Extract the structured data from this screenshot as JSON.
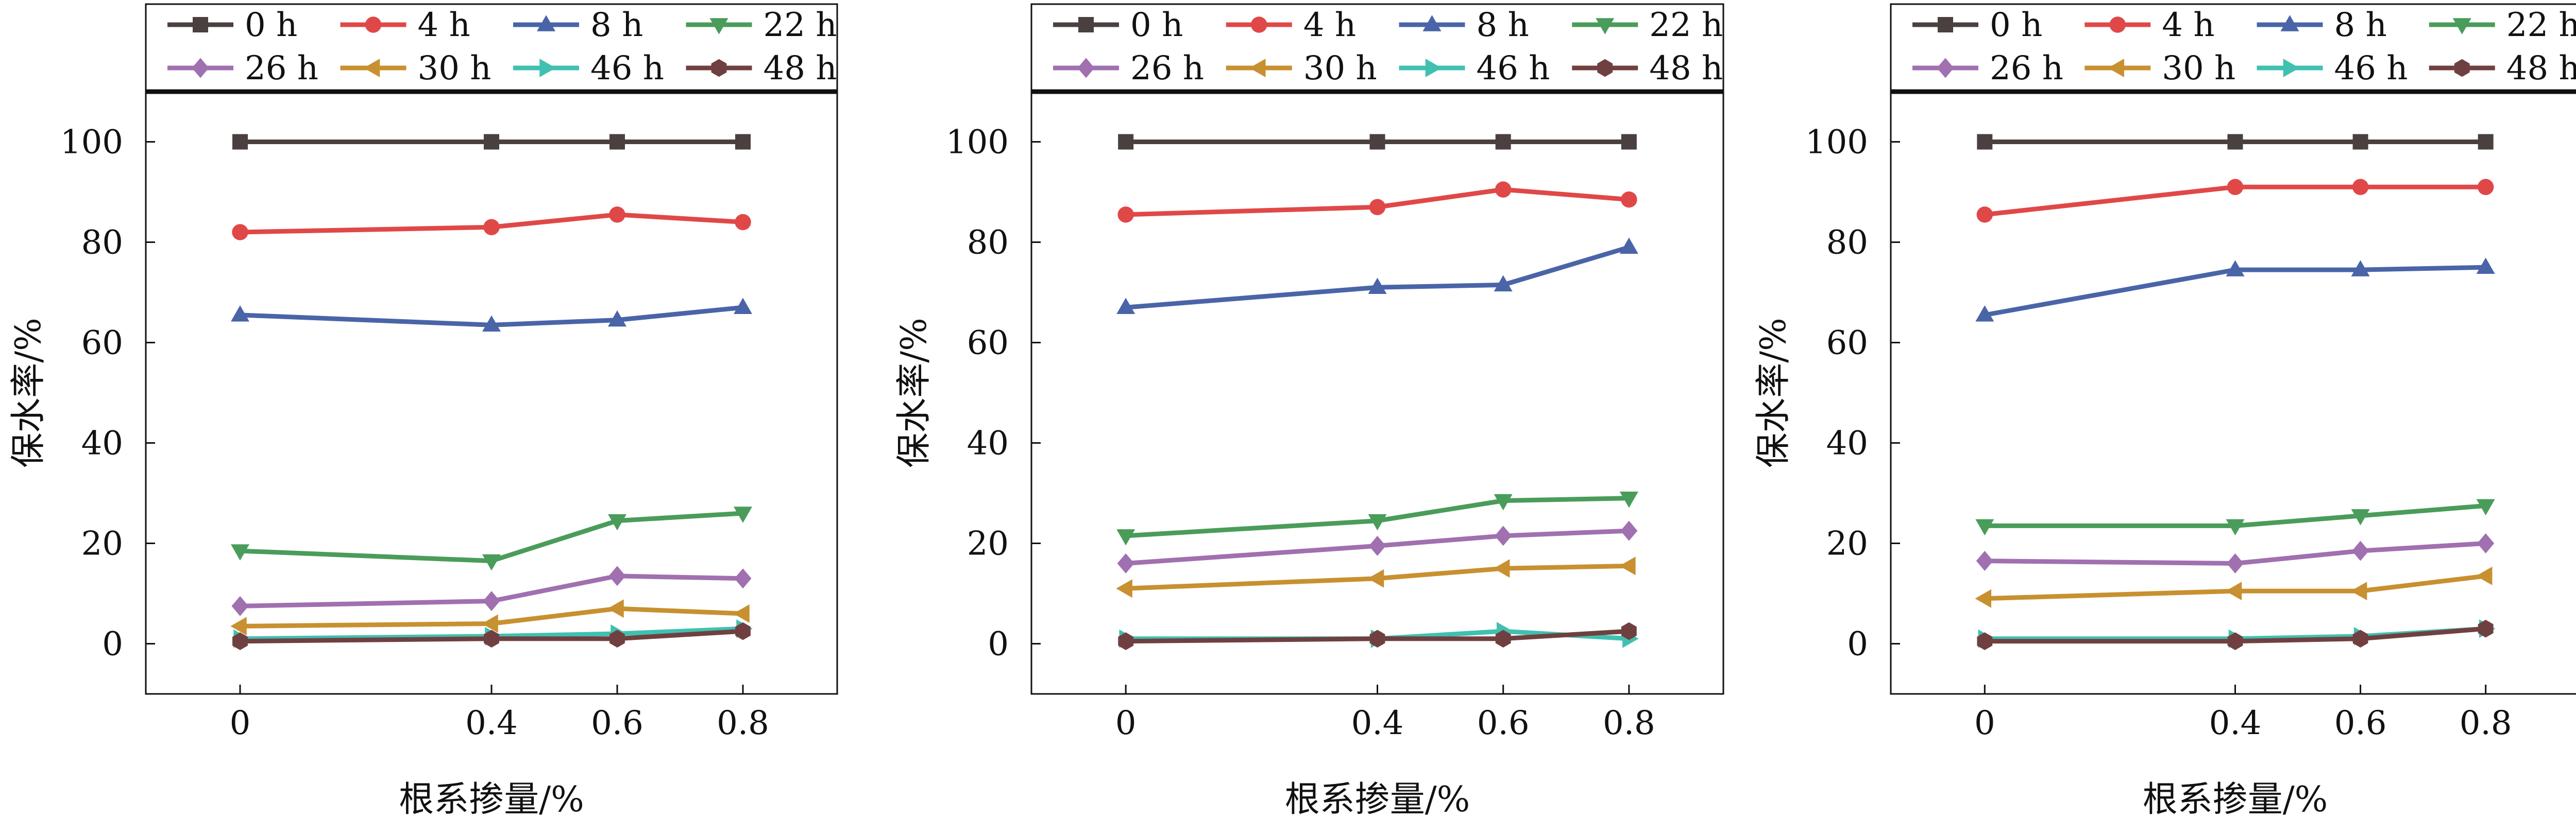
{
  "figure": {
    "panel_count": 3
  },
  "legend_series_order": [
    "0 h",
    "4 h",
    "8 h",
    "22 h",
    "26 h",
    "30 h",
    "46 h",
    "48 h"
  ],
  "series_styles": [
    {
      "name": "0 h",
      "color": "#4a4040",
      "marker": "square"
    },
    {
      "name": "4 h",
      "color": "#e04848",
      "marker": "circle"
    },
    {
      "name": "8 h",
      "color": "#4a64a8",
      "marker": "triangle-up"
    },
    {
      "name": "22 h",
      "color": "#4a9c5a",
      "marker": "triangle-down"
    },
    {
      "name": "26 h",
      "color": "#a070b0",
      "marker": "diamond"
    },
    {
      "name": "30 h",
      "color": "#c89030",
      "marker": "triangle-left"
    },
    {
      "name": "46 h",
      "color": "#40c0b0",
      "marker": "triangle-right"
    },
    {
      "name": "48 h",
      "color": "#704040",
      "marker": "hexagon"
    }
  ],
  "chart_data": [
    {
      "type": "line",
      "title": "",
      "xlabel": "根系掺量/%",
      "ylabel": "保水率/%",
      "categories": [
        "0",
        "0.4",
        "0.6",
        "0.8"
      ],
      "ylim": [
        -10,
        110
      ],
      "yticks": [
        0,
        20,
        40,
        60,
        80,
        100
      ],
      "legend_position": "top",
      "series": [
        {
          "name": "0 h",
          "values": [
            100,
            100,
            100,
            100
          ]
        },
        {
          "name": "4 h",
          "values": [
            82,
            83,
            85.5,
            84
          ]
        },
        {
          "name": "8 h",
          "values": [
            65.5,
            63.5,
            64.5,
            67
          ]
        },
        {
          "name": "22 h",
          "values": [
            18.5,
            16.5,
            24.5,
            26
          ]
        },
        {
          "name": "26 h",
          "values": [
            7.5,
            8.5,
            13.5,
            13
          ]
        },
        {
          "name": "30 h",
          "values": [
            3.5,
            4,
            7,
            6
          ]
        },
        {
          "name": "46 h",
          "values": [
            1,
            1.5,
            2,
            3
          ]
        },
        {
          "name": "48 h",
          "values": [
            0.5,
            1,
            1,
            2.5
          ]
        }
      ]
    },
    {
      "type": "line",
      "title": "",
      "xlabel": "根系掺量/%",
      "ylabel": "保水率/%",
      "categories": [
        "0",
        "0.4",
        "0.6",
        "0.8"
      ],
      "ylim": [
        -10,
        110
      ],
      "yticks": [
        0,
        20,
        40,
        60,
        80,
        100
      ],
      "legend_position": "top",
      "series": [
        {
          "name": "0 h",
          "values": [
            100,
            100,
            100,
            100
          ]
        },
        {
          "name": "4 h",
          "values": [
            85.5,
            87,
            90.5,
            88.5
          ]
        },
        {
          "name": "8 h",
          "values": [
            67,
            71,
            71.5,
            79
          ]
        },
        {
          "name": "22 h",
          "values": [
            21.5,
            24.5,
            28.5,
            29
          ]
        },
        {
          "name": "26 h",
          "values": [
            16,
            19.5,
            21.5,
            22.5
          ]
        },
        {
          "name": "30 h",
          "values": [
            11,
            13,
            15,
            15.5
          ]
        },
        {
          "name": "46 h",
          "values": [
            1,
            1,
            2.5,
            1
          ]
        },
        {
          "name": "48 h",
          "values": [
            0.5,
            1,
            1,
            2.5
          ]
        }
      ]
    },
    {
      "type": "line",
      "title": "",
      "xlabel": "根系掺量/%",
      "ylabel": "保水率/%",
      "categories": [
        "0",
        "0.4",
        "0.6",
        "0.8"
      ],
      "ylim": [
        -10,
        110
      ],
      "yticks": [
        0,
        20,
        40,
        60,
        80,
        100
      ],
      "legend_position": "top",
      "series": [
        {
          "name": "0 h",
          "values": [
            100,
            100,
            100,
            100
          ]
        },
        {
          "name": "4 h",
          "values": [
            85.5,
            91,
            91,
            91
          ]
        },
        {
          "name": "8 h",
          "values": [
            65.5,
            74.5,
            74.5,
            75
          ]
        },
        {
          "name": "22 h",
          "values": [
            23.5,
            23.5,
            25.5,
            27.5
          ]
        },
        {
          "name": "26 h",
          "values": [
            16.5,
            16,
            18.5,
            20
          ]
        },
        {
          "name": "30 h",
          "values": [
            9,
            10.5,
            10.5,
            13.5
          ]
        },
        {
          "name": "46 h",
          "values": [
            1,
            1,
            1.5,
            3
          ]
        },
        {
          "name": "48 h",
          "values": [
            0.5,
            0.5,
            1,
            3
          ]
        }
      ]
    }
  ]
}
